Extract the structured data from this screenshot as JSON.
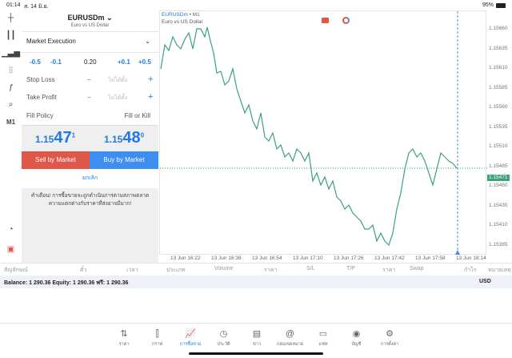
{
  "status": {
    "time": "01:14",
    "date": "ส. 14 มิ.ย.",
    "battery": "95%"
  },
  "left_tools": [
    "crosshair-icon",
    "candles-icon",
    "chart-type-icon",
    "indicators-icon",
    "function-icon",
    "objects-icon",
    "M1"
  ],
  "order": {
    "symbol": "EURUSDm",
    "symbol_desc": "Euro vs US Dollar",
    "execution": "Market Execution",
    "vol_buttons": [
      "-0.5",
      "-0.1",
      "+0.1",
      "+0.5"
    ],
    "volume": "0.20",
    "stop_loss_label": "Stop Loss",
    "take_profit_label": "Take Profit",
    "not_set": "ไม่ได้ตั้ง",
    "fill_policy_label": "Fill Policy",
    "fill_policy_value": "Fill or Kill",
    "bid_prefix": "1.15",
    "bid_big": "47",
    "bid_sup": "1",
    "ask_prefix": "1.15",
    "ask_big": "48",
    "ask_sup": "0",
    "sell_label": "Sell by Market",
    "buy_label": "Buy by Market",
    "cancel_label": "ยกเลิก",
    "warning": "คำเตือน! การซื้อขายจะถูกดำเนินการตามสภาพตลาด ความแตกต่างกับราคาที่ส่งอาจมีมาก!"
  },
  "chart": {
    "symbol": "EURUSDm",
    "timeframe": "• M1",
    "desc": "Euro vs US Dollar",
    "current_price": "1.15471",
    "y_labels": [
      "1.15660",
      "1.15635",
      "1.15610",
      "1.15585",
      "1.15560",
      "1.15535",
      "1.15510",
      "1.15485",
      "1.15460",
      "1.15435",
      "1.15410",
      "1.15385"
    ],
    "x_labels": [
      "13 Jun 16:22",
      "13 Jun 16:38",
      "13 Jun 16:54",
      "13 Jun 17:10",
      "13 Jun 17:26",
      "13 Jun 17:42",
      "13 Jun 17:58",
      "13 Jun 18:14"
    ],
    "colors": {
      "line": "#3aa37a",
      "sell": "#e0574a",
      "buy": "#3d8ef0"
    }
  },
  "table": {
    "headers": [
      "สัญลักษณ์",
      "ตั๋ว",
      "เวลา",
      "ประเภท",
      "Volume",
      "ราคา",
      "S/L",
      "T/P",
      "ราคา",
      "Swap",
      "กำไร",
      "หมายเหตุ"
    ]
  },
  "balance": {
    "text": "Balance: 1 290.36 Equity: 1 290.36 ฟรี: 1 290.36",
    "currency": "USD"
  },
  "nav": [
    {
      "icon": "⇅",
      "label": "ราคา"
    },
    {
      "icon": "⫿",
      "label": "กราฟ"
    },
    {
      "icon": "📈",
      "label": "การซื้อขาย"
    },
    {
      "icon": "◷",
      "label": "ประวัติ"
    },
    {
      "icon": "▤",
      "label": "ข่าว"
    },
    {
      "icon": "@",
      "label": "กล่องจดหมาย"
    },
    {
      "icon": "▭",
      "label": "แชท"
    },
    {
      "icon": "◉",
      "label": "บัญชี"
    },
    {
      "icon": "⚙",
      "label": "การตั้งค่า"
    }
  ]
}
